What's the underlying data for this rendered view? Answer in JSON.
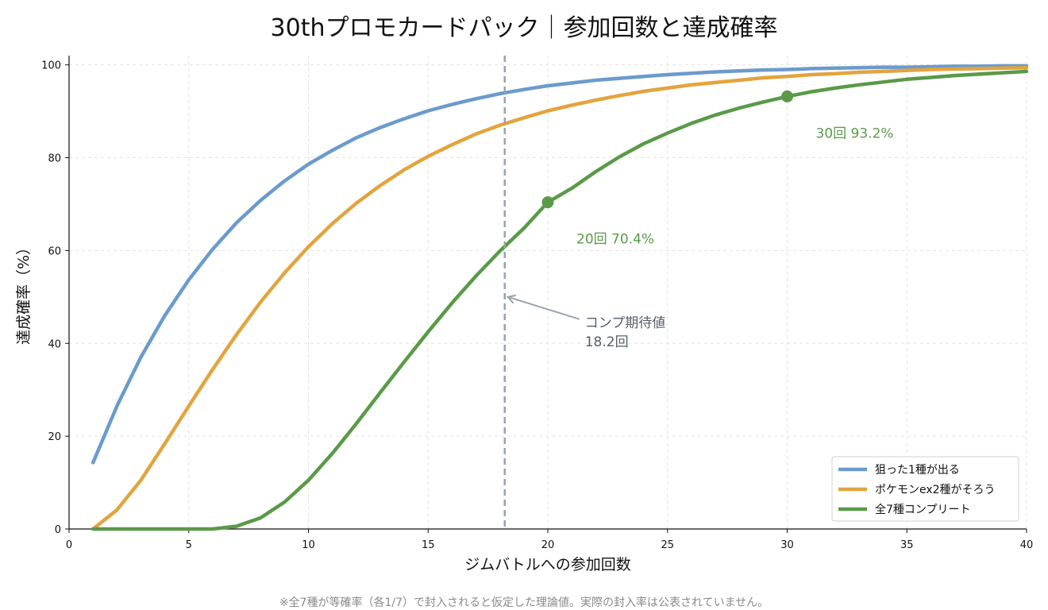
{
  "title": "30thプロモカードパック｜参加回数と達成確率",
  "footnote": "※全7種が等確率（各1/7）で封入されると仮定した理論値。実際の封入率は公表されていません。",
  "chart_data": {
    "type": "line",
    "xlabel": "ジムバトルへの参加回数",
    "ylabel": "達成確率（%）",
    "xlim": [
      0,
      40
    ],
    "ylim": [
      0,
      102
    ],
    "xticks": [
      0,
      5,
      10,
      15,
      20,
      25,
      30,
      35,
      40
    ],
    "yticks": [
      0,
      20,
      40,
      60,
      80,
      100
    ],
    "grid": true,
    "legend_position": "bottom-right",
    "x": [
      1,
      2,
      3,
      4,
      5,
      6,
      7,
      8,
      9,
      10,
      11,
      12,
      13,
      14,
      15,
      16,
      17,
      18,
      19,
      20,
      21,
      22,
      23,
      24,
      25,
      26,
      27,
      28,
      29,
      30,
      31,
      32,
      33,
      34,
      35,
      36,
      37,
      38,
      39,
      40
    ],
    "series": [
      {
        "name": "狙った1種が出る",
        "color": "#6b9bcc",
        "values": [
          14.3,
          26.5,
          37.0,
          46.0,
          53.7,
          60.3,
          66.0,
          70.8,
          75.0,
          78.6,
          81.6,
          84.3,
          86.5,
          88.4,
          90.1,
          91.5,
          92.7,
          93.8,
          94.7,
          95.5,
          96.1,
          96.7,
          97.1,
          97.5,
          97.9,
          98.2,
          98.5,
          98.7,
          98.9,
          99.0,
          99.2,
          99.3,
          99.4,
          99.5,
          99.5,
          99.6,
          99.7,
          99.7,
          99.8,
          99.8
        ]
      },
      {
        "name": "ポケモンex2種がそろう",
        "color": "#e3a43e",
        "values": [
          0.0,
          4.1,
          10.5,
          18.4,
          26.5,
          34.4,
          41.9,
          48.9,
          55.2,
          60.8,
          65.8,
          70.2,
          74.0,
          77.4,
          80.3,
          82.8,
          85.1,
          87.0,
          88.6,
          90.1,
          91.3,
          92.4,
          93.4,
          94.3,
          95.0,
          95.7,
          96.2,
          96.7,
          97.2,
          97.5,
          97.9,
          98.1,
          98.4,
          98.6,
          98.8,
          99.0,
          99.1,
          99.2,
          99.3,
          99.4
        ]
      },
      {
        "name": "全7種コンプリート",
        "color": "#5a9a48",
        "values": [
          0.0,
          0.0,
          0.0,
          0.0,
          0.0,
          0.0,
          0.6,
          2.4,
          5.8,
          10.5,
          16.3,
          22.7,
          29.4,
          36.0,
          42.5,
          48.7,
          54.5,
          59.9,
          64.8,
          70.4,
          73.4,
          77.0,
          80.2,
          83.0,
          85.3,
          87.4,
          89.2,
          90.7,
          92.0,
          93.2,
          94.2,
          95.0,
          95.7,
          96.3,
          96.9,
          97.3,
          97.7,
          98.0,
          98.3,
          98.6
        ]
      }
    ],
    "markers": [
      {
        "series": 2,
        "x": 20,
        "y": 70.4,
        "label": "20回 70.4%"
      },
      {
        "series": 2,
        "x": 30,
        "y": 93.2,
        "label": "30回 93.2%"
      }
    ],
    "vline": {
      "x": 18.2,
      "label_line1": "コンプ期待値",
      "label_line2": "18.2回",
      "color": "#9aa3ad"
    }
  }
}
